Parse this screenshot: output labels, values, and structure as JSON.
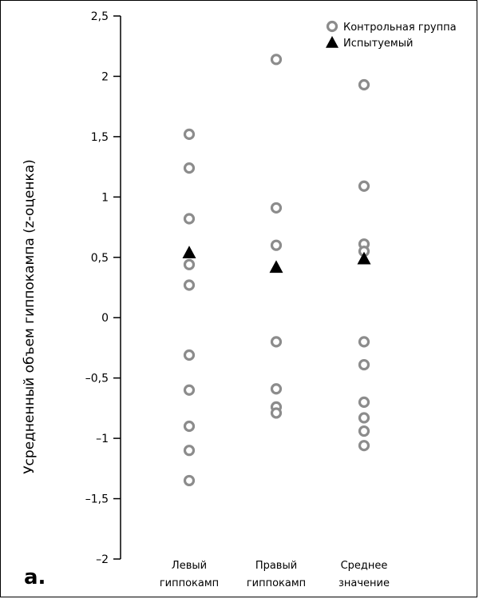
{
  "panel_label": "а.",
  "chart_data": {
    "type": "scatter",
    "ylabel": "Усредненный объем гиппокампа (z-оценка)",
    "ylim": [
      -2,
      2.5
    ],
    "yticks": [
      2.5,
      2,
      1.5,
      1,
      0.5,
      0,
      -0.5,
      -1,
      -1.5,
      -2
    ],
    "ytick_labels": [
      "2,5",
      "2",
      "1,5",
      "1",
      "0,5",
      "0",
      "–0,5",
      "–1",
      "–1,5",
      "–2"
    ],
    "categories": [
      {
        "line1": "Левый",
        "line2": "гиппокамп"
      },
      {
        "line1": "Правый",
        "line2": "гиппокамп"
      },
      {
        "line1": "Среднее",
        "line2": "значение"
      }
    ],
    "series": [
      {
        "name": "Контрольная группа",
        "marker": "open-circle",
        "color": "#8c8c8c",
        "values": [
          [
            1.52,
            1.24,
            0.82,
            0.44,
            0.27,
            -0.31,
            -0.6,
            -0.9,
            -1.1,
            -1.35
          ],
          [
            2.14,
            0.91,
            0.6,
            -0.2,
            -0.59,
            -0.74,
            -0.79
          ],
          [
            1.93,
            1.09,
            0.61,
            0.55,
            -0.2,
            -0.39,
            -0.7,
            -0.83,
            -0.94,
            -1.06
          ]
        ]
      },
      {
        "name": "Испытуемый",
        "marker": "filled-triangle",
        "color": "#000000",
        "values": [
          [
            0.54
          ],
          [
            0.42
          ],
          [
            0.49
          ]
        ]
      }
    ],
    "legend_position": "top-right",
    "grid": false
  }
}
